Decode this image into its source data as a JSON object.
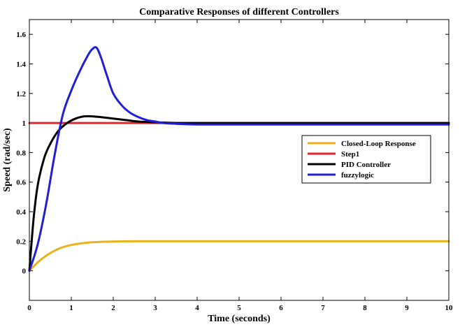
{
  "chart_data": {
    "type": "line",
    "title": "Comparative Responses of different Controllers",
    "xlabel": "Time (seconds)",
    "ylabel": "Speed (rad/sec)",
    "xlim": [
      0,
      10
    ],
    "ylim": [
      -0.2,
      1.7
    ],
    "xticks": [
      0,
      1,
      2,
      3,
      4,
      5,
      6,
      7,
      8,
      9,
      10
    ],
    "yticks": [
      0,
      0.2,
      0.4,
      0.6,
      0.8,
      1,
      1.2,
      1.4,
      1.6
    ],
    "xtick_labels": [
      "0",
      "1",
      "2",
      "3",
      "4",
      "5",
      "6",
      "7",
      "8",
      "9",
      "10"
    ],
    "ytick_labels": [
      "0",
      "0.2",
      "0.4",
      "0.6",
      "0.8",
      "1",
      "1.2",
      "1.4",
      "1.6"
    ],
    "legend_position": "right",
    "series": [
      {
        "name": "Closed-Loop Response",
        "color": "#EDB120",
        "x": [
          0,
          0.25,
          0.5,
          0.75,
          1.0,
          1.25,
          1.5,
          2.0,
          2.5,
          3.0,
          4.0,
          5.0,
          6.0,
          7.0,
          8.0,
          9.0,
          10.0
        ],
        "y": [
          0,
          0.07,
          0.12,
          0.155,
          0.175,
          0.186,
          0.193,
          0.198,
          0.2,
          0.2,
          0.2,
          0.2,
          0.2,
          0.2,
          0.2,
          0.2,
          0.2
        ]
      },
      {
        "name": "Step1",
        "color": "#E0262D",
        "x": [
          0,
          10
        ],
        "y": [
          1,
          1
        ]
      },
      {
        "name": "PID Controller",
        "color": "#000000",
        "x": [
          0,
          0.1,
          0.2,
          0.35,
          0.5,
          0.7,
          0.9,
          1.1,
          1.3,
          1.5,
          1.7,
          2.0,
          2.3,
          2.6,
          3.0,
          3.5,
          4.0,
          5.0,
          6.0,
          7.0,
          8.0,
          9.0,
          10.0
        ],
        "y": [
          0,
          0.35,
          0.58,
          0.76,
          0.86,
          0.95,
          1.0,
          1.03,
          1.045,
          1.045,
          1.04,
          1.03,
          1.02,
          1.01,
          1.005,
          1.0,
          1.0,
          1.0,
          1.0,
          1.0,
          1.0,
          1.0,
          1.0
        ]
      },
      {
        "name": "fuzzylogic",
        "color": "#1F1FD6",
        "x": [
          0,
          0.2,
          0.4,
          0.6,
          0.8,
          1.0,
          1.2,
          1.4,
          1.5,
          1.6,
          1.7,
          1.85,
          2.0,
          2.2,
          2.4,
          2.6,
          2.8,
          3.0,
          3.2,
          3.5,
          4.0,
          5.0,
          6.0,
          7.0,
          8.0,
          9.0,
          10.0
        ],
        "y": [
          0,
          0.18,
          0.45,
          0.78,
          1.06,
          1.22,
          1.35,
          1.46,
          1.5,
          1.51,
          1.45,
          1.32,
          1.2,
          1.12,
          1.07,
          1.04,
          1.02,
          1.01,
          1.0,
          0.995,
          0.99,
          0.99,
          0.99,
          0.99,
          0.99,
          0.99,
          0.99
        ]
      }
    ]
  }
}
